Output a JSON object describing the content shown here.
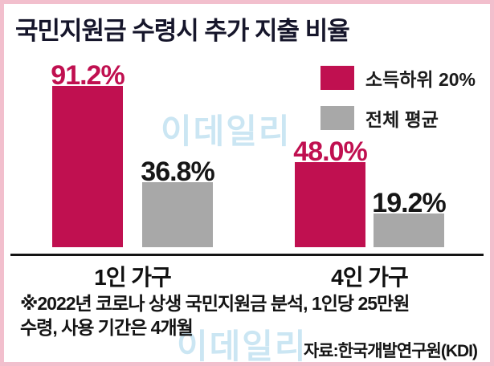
{
  "title": "국민지원금 수령시 추가 지출 비율",
  "watermark": "이데일리",
  "chart_data": {
    "type": "bar",
    "title": "국민지원금 수령시 추가 지출 비율",
    "categories": [
      "1인 가구",
      "4인 가구"
    ],
    "series": [
      {
        "name": "소득하위 20%",
        "color": "#c01050",
        "values": [
          91.2,
          48.0
        ],
        "labels": [
          "91.2%",
          "48.0%"
        ]
      },
      {
        "name": "전체 평균",
        "color": "#a8a8a8",
        "values": [
          36.8,
          19.2
        ],
        "labels": [
          "36.8%",
          "19.2%"
        ]
      }
    ],
    "unit": "%",
    "ylim": [
      0,
      100
    ],
    "grid": false,
    "legend_position": "top-right"
  },
  "footnote": {
    "line1": "※2022년 코로나 상생 국민지원금 분석, 1인당 25만원",
    "line2": "수령, 사용 기간은 4개월"
  },
  "source": "자료:한국개발연구원(KDI)"
}
